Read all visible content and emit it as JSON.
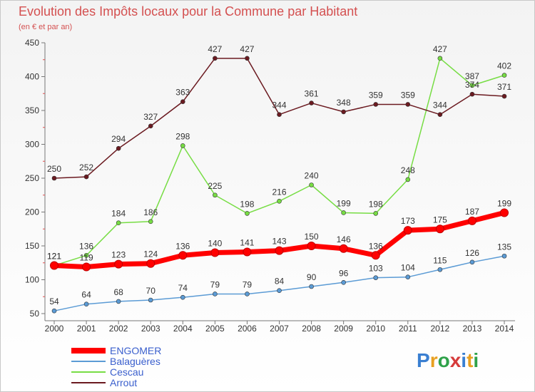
{
  "chart_data": {
    "type": "line",
    "title": "Evolution des Impôts locaux pour la Commune par Habitant",
    "subtitle": "(en € et par an)",
    "categories": [
      "2000",
      "2001",
      "2002",
      "2003",
      "2004",
      "2005",
      "2006",
      "2007",
      "2008",
      "2009",
      "2010",
      "2011",
      "2012",
      "2013",
      "2014"
    ],
    "ylim": [
      50,
      450
    ],
    "yticks": [
      50,
      100,
      150,
      200,
      250,
      300,
      350,
      400,
      450
    ],
    "grid": false,
    "legend_position": "bottom-left",
    "series": [
      {
        "name": "ENGOMER",
        "color": "#ff0000",
        "values": [
          121,
          119,
          123,
          124,
          136,
          140,
          141,
          143,
          150,
          146,
          136,
          173,
          175,
          187,
          199
        ]
      },
      {
        "name": "Balaguères",
        "color": "#5b9bd5",
        "values": [
          54,
          64,
          68,
          70,
          74,
          79,
          79,
          84,
          90,
          96,
          103,
          104,
          115,
          126,
          135
        ]
      },
      {
        "name": "Cescau",
        "color": "#77dd44",
        "values": [
          121,
          136,
          184,
          186,
          298,
          225,
          198,
          216,
          240,
          199,
          198,
          248,
          427,
          387,
          402
        ]
      },
      {
        "name": "Arrout",
        "color": "#6b1a20",
        "values": [
          250,
          252,
          294,
          327,
          363,
          427,
          427,
          344,
          361,
          348,
          359,
          359,
          344,
          374,
          371
        ]
      }
    ]
  },
  "logo": {
    "text": "Proxiti"
  }
}
